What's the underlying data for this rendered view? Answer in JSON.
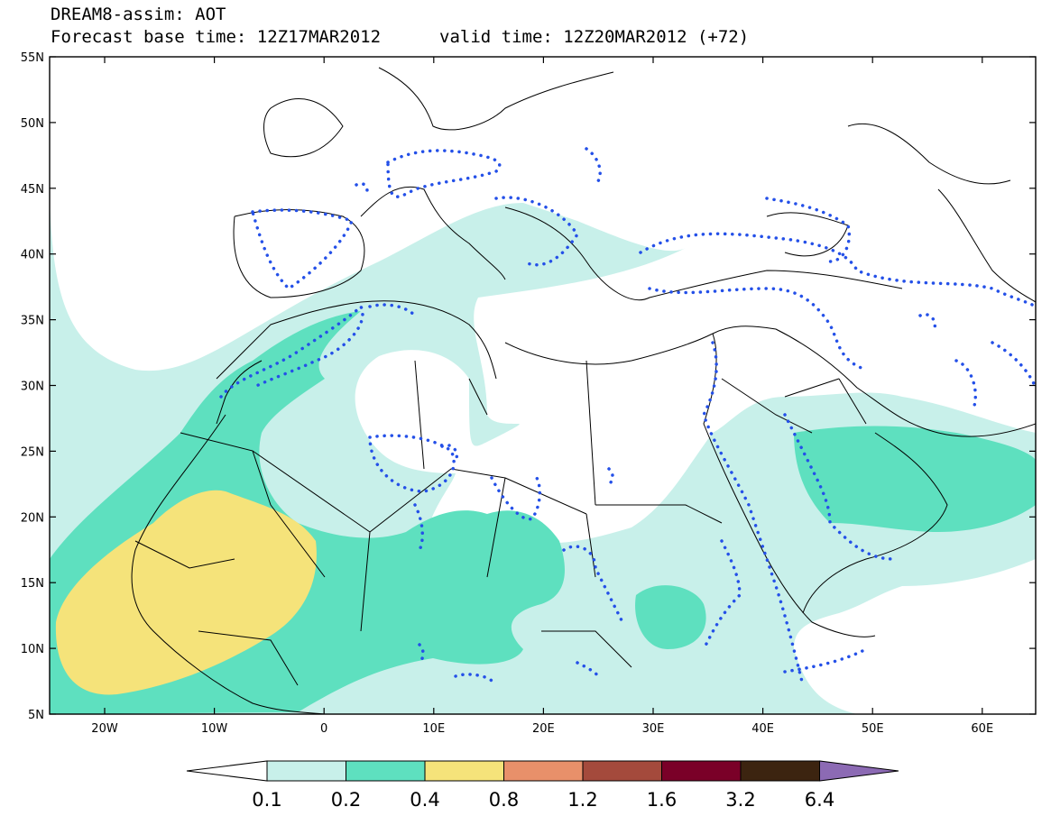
{
  "header": {
    "product": "DREAM8-assim: AOT",
    "base_time_label": "Forecast base time: 12Z17MAR2012",
    "valid_time_label": "valid time: 12Z20MAR2012 (+72)"
  },
  "axes": {
    "lat_labels": [
      "55N",
      "50N",
      "45N",
      "40N",
      "35N",
      "30N",
      "25N",
      "20N",
      "15N",
      "10N",
      "5N"
    ],
    "lon_labels": [
      "20W",
      "10W",
      "0",
      "10E",
      "20E",
      "30E",
      "40E",
      "50E",
      "60E"
    ]
  },
  "colors": {
    "aot_0_1": "#c8f0ea",
    "aot_0_2": "#5ee0bf",
    "aot_0_4": "#f5e37a",
    "aot_0_8": "#e8906a",
    "aot_1_2": "#a44a3c",
    "aot_1_6": "#7a0028",
    "aot_3_2": "#3c2410",
    "aot_6_4": "#8c6ab4",
    "contour_dotted": "#2450e8",
    "coastline": "#000000"
  },
  "legend": {
    "tick_labels": [
      "0.1",
      "0.2",
      "0.4",
      "0.8",
      "1.2",
      "1.6",
      "3.2",
      "6.4"
    ]
  }
}
